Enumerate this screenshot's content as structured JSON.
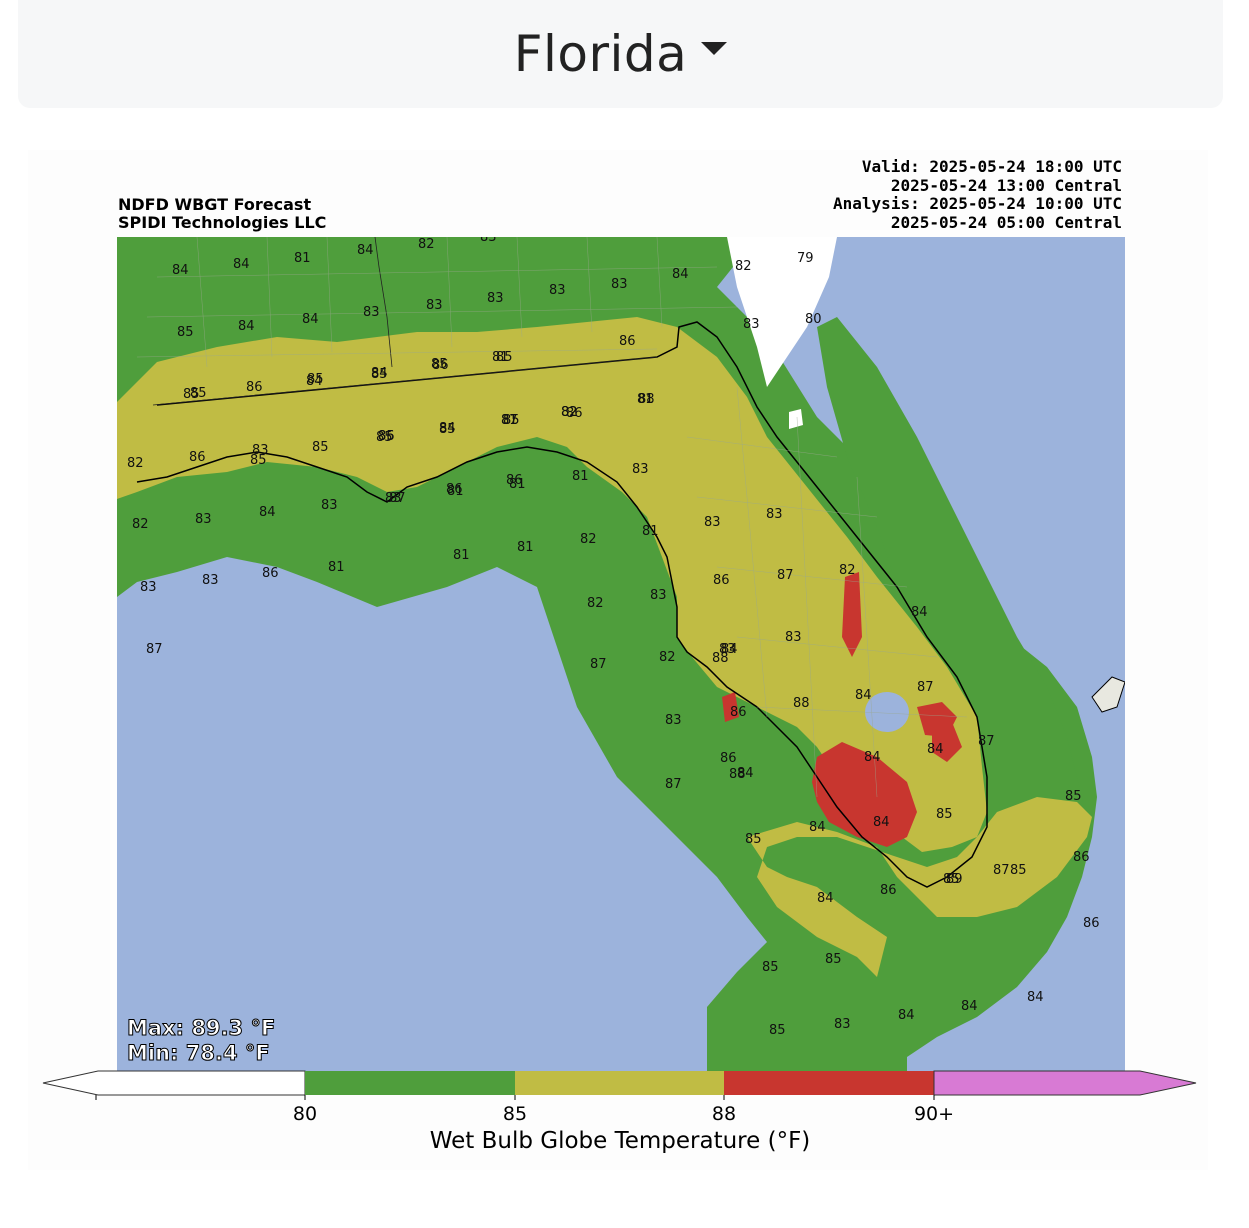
{
  "header": {
    "title": "Florida"
  },
  "figure": {
    "title_line1": "NDFD WBGT Forecast",
    "title_line2": "SPIDI Technologies LLC",
    "valid_line": "Valid: 2025-05-24 18:00 UTC",
    "valid_central": "2025-05-24 13:00 Central",
    "analysis_line": "Analysis: 2025-05-24 10:00 UTC",
    "analysis_central": "2025-05-24 05:00 Central",
    "max_text": "Max: 89.3 °F",
    "min_text": "Min: 78.4 °F"
  },
  "colorbar": {
    "label": "Wet Bulb Globe Temperature (°F)",
    "ticks": [
      "80",
      "85",
      "88",
      "90+"
    ],
    "colors": {
      "below_80": "#ffffff",
      "80_85": "#4f9e3c",
      "85_88": "#c0bc44",
      "88_90": "#c8362f",
      "90_plus": "#d87ad4"
    }
  },
  "map_colors": {
    "water": "#9cb3dc",
    "green": "#4f9e3c",
    "yellow": "#c0bc44",
    "red": "#c8362f",
    "white": "#ffffff"
  },
  "map_labels": [
    {
      "t": "84"
    },
    {
      "t": "84"
    },
    {
      "t": "81"
    },
    {
      "t": "84"
    },
    {
      "t": "82"
    },
    {
      "t": "83"
    },
    {
      "t": "84"
    },
    {
      "t": "82"
    },
    {
      "t": "79"
    },
    {
      "t": "85"
    },
    {
      "t": "84"
    },
    {
      "t": "84"
    },
    {
      "t": "83"
    },
    {
      "t": "83"
    },
    {
      "t": "83"
    },
    {
      "t": "83"
    },
    {
      "t": "83"
    },
    {
      "t": "83"
    },
    {
      "t": "80"
    },
    {
      "t": "85"
    },
    {
      "t": "84"
    },
    {
      "t": "85"
    },
    {
      "t": "86"
    },
    {
      "t": "85"
    },
    {
      "t": "85"
    },
    {
      "t": "86"
    },
    {
      "t": "85"
    },
    {
      "t": "84"
    },
    {
      "t": "85"
    },
    {
      "t": "81"
    },
    {
      "t": "86"
    },
    {
      "t": "85"
    },
    {
      "t": "84"
    },
    {
      "t": "85"
    },
    {
      "t": "86"
    },
    {
      "t": "85"
    },
    {
      "t": "85"
    },
    {
      "t": "85"
    },
    {
      "t": "85"
    },
    {
      "t": "81"
    },
    {
      "t": "82"
    },
    {
      "t": "82"
    },
    {
      "t": "86"
    },
    {
      "t": "83"
    },
    {
      "t": "86"
    },
    {
      "t": "87"
    },
    {
      "t": "88"
    },
    {
      "t": "81"
    },
    {
      "t": "81"
    },
    {
      "t": "81"
    },
    {
      "t": "82"
    },
    {
      "t": "81"
    },
    {
      "t": "82"
    },
    {
      "t": "83"
    },
    {
      "t": "84"
    },
    {
      "t": "83"
    },
    {
      "t": "83"
    },
    {
      "t": "87"
    },
    {
      "t": "86"
    },
    {
      "t": "86"
    },
    {
      "t": "83"
    },
    {
      "t": "81"
    },
    {
      "t": "81"
    },
    {
      "t": "81"
    },
    {
      "t": "82"
    },
    {
      "t": "81"
    },
    {
      "t": "83"
    },
    {
      "t": "83"
    },
    {
      "t": "83"
    },
    {
      "t": "83"
    },
    {
      "t": "86"
    },
    {
      "t": "86"
    },
    {
      "t": "87"
    },
    {
      "t": "82"
    },
    {
      "t": "82"
    },
    {
      "t": "83"
    },
    {
      "t": "83"
    },
    {
      "t": "87"
    },
    {
      "t": "87"
    },
    {
      "t": "88"
    },
    {
      "t": "83"
    },
    {
      "t": "84"
    },
    {
      "t": "82"
    },
    {
      "t": "84"
    },
    {
      "t": "83"
    },
    {
      "t": "86"
    },
    {
      "t": "88"
    },
    {
      "t": "84"
    },
    {
      "t": "87"
    },
    {
      "t": "86"
    },
    {
      "t": "84"
    },
    {
      "t": "84"
    },
    {
      "t": "84"
    },
    {
      "t": "87"
    },
    {
      "t": "88"
    },
    {
      "t": "87"
    },
    {
      "t": "84"
    },
    {
      "t": "84"
    },
    {
      "t": "85"
    },
    {
      "t": "85"
    },
    {
      "t": "89"
    },
    {
      "t": "87"
    },
    {
      "t": "84"
    },
    {
      "t": "86"
    },
    {
      "t": "85"
    },
    {
      "t": "85"
    },
    {
      "t": "85"
    },
    {
      "t": "86"
    },
    {
      "t": "86"
    },
    {
      "t": "85"
    },
    {
      "t": "85"
    },
    {
      "t": "85"
    },
    {
      "t": "83"
    },
    {
      "t": "84"
    },
    {
      "t": "84"
    },
    {
      "t": "84"
    },
    {
      "t": "84"
    },
    {
      "t": "84"
    }
  ]
}
